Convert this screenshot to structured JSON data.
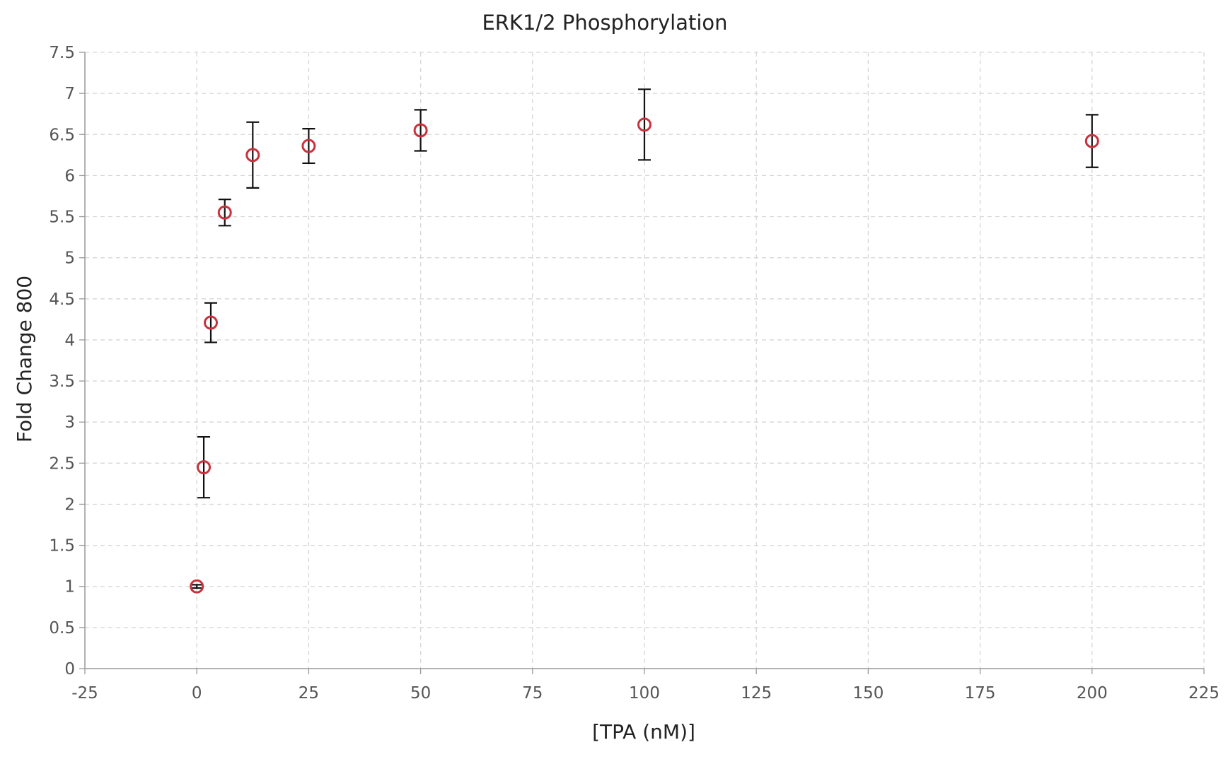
{
  "chart_data": {
    "type": "scatter",
    "title": "ERK1/2 Phosphorylation",
    "xlabel": "[TPA (nM)]",
    "ylabel": "Fold Change 800",
    "xlim": [
      -25,
      225
    ],
    "ylim": [
      0,
      7.5
    ],
    "xticks": [
      -25,
      0,
      25,
      50,
      75,
      100,
      125,
      150,
      175,
      200,
      225
    ],
    "yticks": [
      0,
      0.5,
      1,
      1.5,
      2,
      2.5,
      3,
      3.5,
      4,
      4.5,
      5,
      5.5,
      6,
      6.5,
      7,
      7.5
    ],
    "grid": true,
    "marker_color": "#c8323c",
    "errorbar_color": "#111111",
    "series": [
      {
        "x": [
          0,
          1.56,
          3.13,
          6.25,
          12.5,
          25,
          50,
          100,
          200
        ],
        "y": [
          1.0,
          2.45,
          4.21,
          5.55,
          6.25,
          6.36,
          6.55,
          6.62,
          6.42
        ],
        "error": [
          0.02,
          0.37,
          0.24,
          0.16,
          0.4,
          0.21,
          0.25,
          0.43,
          0.32
        ]
      }
    ]
  }
}
